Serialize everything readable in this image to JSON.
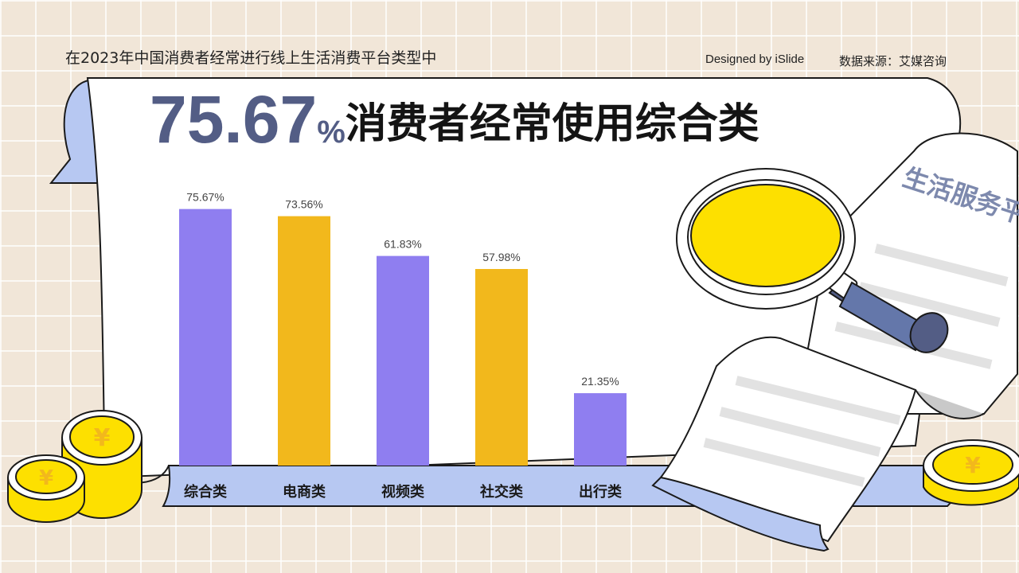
{
  "header": {
    "subtitle": "在2023年中国消费者经常进行线上生活消费平台类型中",
    "designed_by": "Designed by iSlide",
    "source": "数据来源：艾媒咨询"
  },
  "headline": {
    "number": "75.67",
    "unit": "%",
    "text": "消费者经常使用综合类"
  },
  "illustration": {
    "document_title": "生活服务平",
    "coin_symbol": "¥",
    "icons": [
      "scroll-banner",
      "coin-stack",
      "magnifier",
      "document"
    ]
  },
  "colors": {
    "purple": "#8f7ef0",
    "gold": "#f2b81c",
    "navy": "#535d85",
    "scroll_blue": "#b7c8f2",
    "coin_yellow": "#fde000"
  },
  "chart_data": {
    "type": "bar",
    "categories": [
      "综合类",
      "电商类",
      "视频类",
      "社交类",
      "出行类"
    ],
    "values": [
      75.67,
      73.56,
      61.83,
      57.98,
      21.35
    ],
    "value_labels": [
      "75.67%",
      "73.56%",
      "61.83%",
      "57.98%",
      "21.35%"
    ],
    "bar_colors": [
      "#8f7ef0",
      "#f2b81c",
      "#8f7ef0",
      "#f2b81c",
      "#8f7ef0"
    ],
    "ylim": [
      0,
      100
    ],
    "grid": false,
    "legend": false,
    "title": "",
    "xlabel": "",
    "ylabel": ""
  }
}
